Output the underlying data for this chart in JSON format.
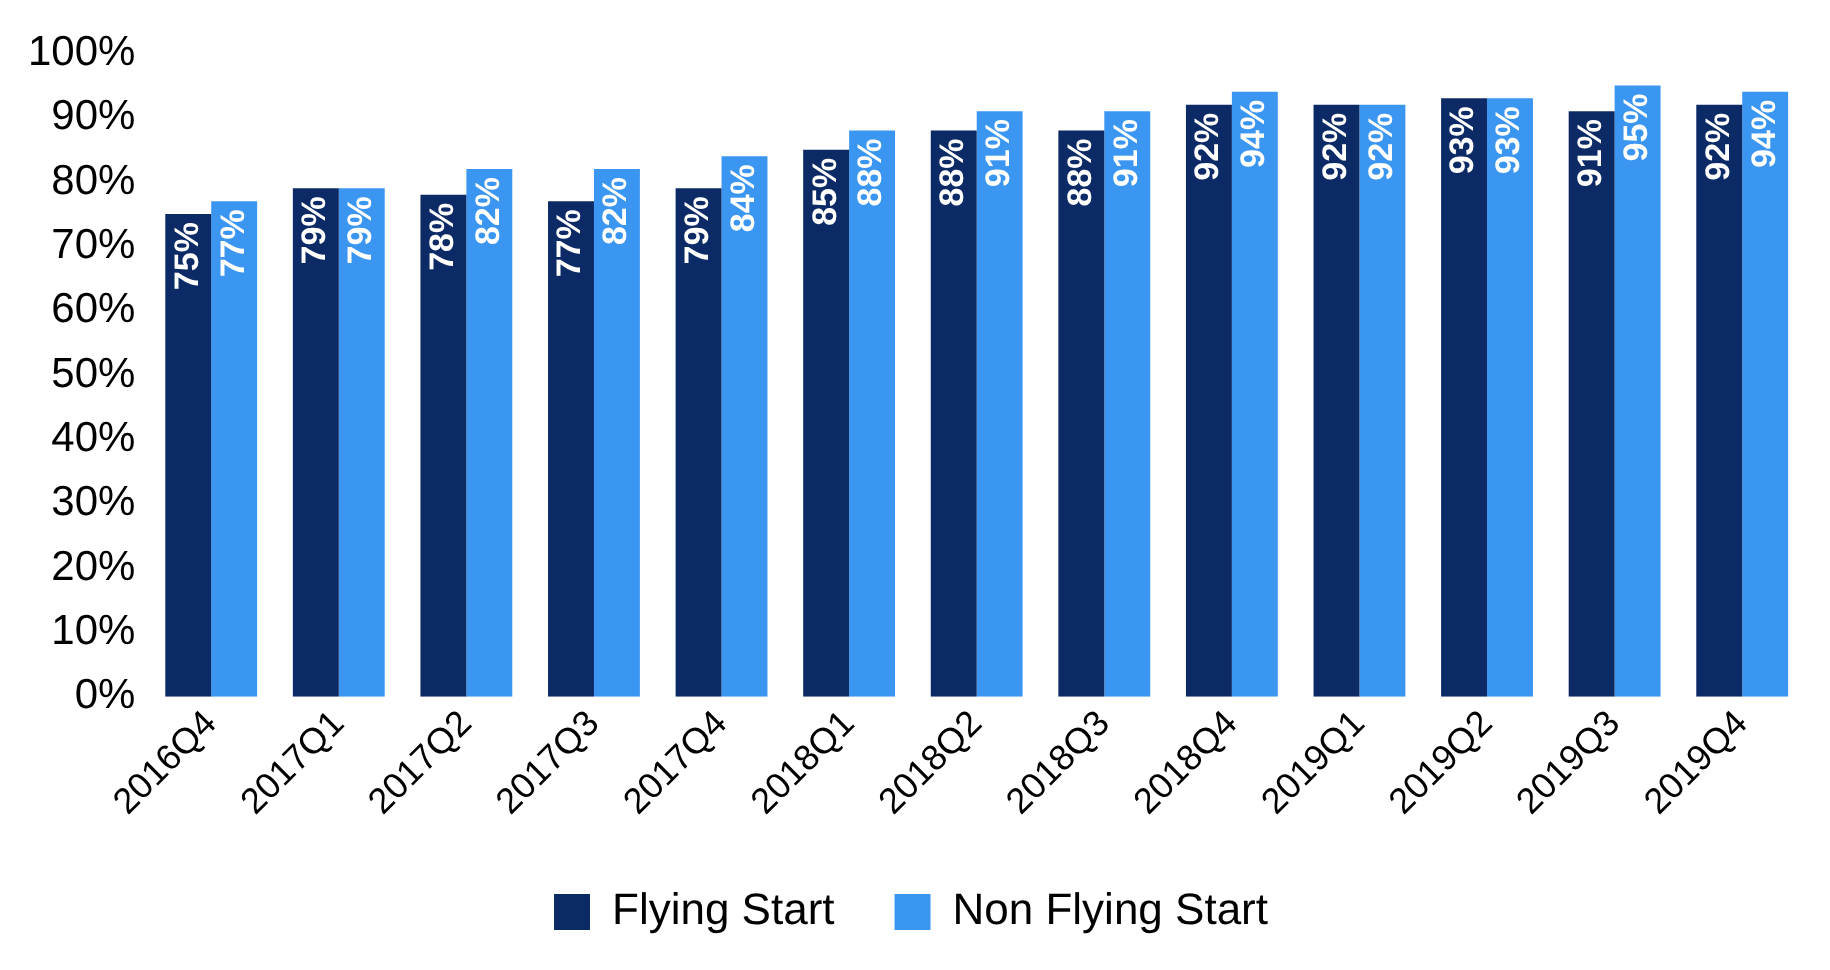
{
  "chart_data": {
    "type": "bar",
    "categories": [
      "2016Q4",
      "2017Q1",
      "2017Q2",
      "2017Q3",
      "2017Q4",
      "2018Q1",
      "2018Q2",
      "2018Q3",
      "2018Q4",
      "2019Q1",
      "2019Q2",
      "2019Q3",
      "2019Q4"
    ],
    "series": [
      {
        "name": "Flying Start",
        "color": "#0c2a66",
        "values": [
          75,
          79,
          78,
          77,
          79,
          85,
          88,
          88,
          92,
          92,
          93,
          91,
          92
        ],
        "value_labels": [
          "75%",
          "79%",
          "78%",
          "77%",
          "79%",
          "85%",
          "88%",
          "88%",
          "92%",
          "92%",
          "93%",
          "91%",
          "92%"
        ]
      },
      {
        "name": "Non Flying Start",
        "color": "#3b96f2",
        "values": [
          77,
          79,
          82,
          82,
          84,
          88,
          91,
          91,
          94,
          92,
          93,
          95,
          94
        ],
        "value_labels": [
          "77%",
          "79%",
          "82%",
          "82%",
          "84%",
          "88%",
          "91%",
          "91%",
          "94%",
          "92%",
          "93%",
          "95%",
          "94%"
        ]
      }
    ],
    "ylim": [
      0,
      100
    ],
    "yticks": [
      {
        "value": 0,
        "label": "0%"
      },
      {
        "value": 10,
        "label": "10%"
      },
      {
        "value": 20,
        "label": "20%"
      },
      {
        "value": 30,
        "label": "30%"
      },
      {
        "value": 40,
        "label": "40%"
      },
      {
        "value": 50,
        "label": "50%"
      },
      {
        "value": 60,
        "label": "60%"
      },
      {
        "value": 70,
        "label": "70%"
      },
      {
        "value": 80,
        "label": "80%"
      },
      {
        "value": 90,
        "label": "90%"
      },
      {
        "value": 100,
        "label": "100%"
      }
    ],
    "grid": false,
    "legend": "bottom"
  }
}
